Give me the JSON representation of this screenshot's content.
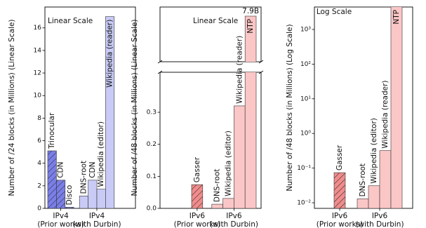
{
  "chart_data": [
    {
      "type": "bar",
      "annotation": "Linear Scale",
      "ylabel": "Number of /24 blocks (in Millions) (Linear Scale)",
      "ylim": [
        0,
        17.85
      ],
      "yticks": [
        0,
        2,
        4,
        6,
        8,
        10,
        12,
        14,
        16
      ],
      "groups": [
        {
          "name": "IPv4",
          "note": "(Prior works)",
          "color": "#7a7ee6",
          "hatch": true,
          "categories": [
            "Trinocular",
            "CDN",
            "Disco"
          ],
          "values": [
            5.1,
            2.5,
            0.1
          ]
        },
        {
          "name": "IPv4",
          "note": "(with Durbin)",
          "color": "#c9cbf6",
          "hatch": false,
          "categories": [
            "DNS-root",
            "CDN",
            "Wikipedia (editor)",
            "Wikipedia (reader)"
          ],
          "values": [
            1.1,
            2.5,
            1.7,
            17.0
          ]
        }
      ]
    },
    {
      "type": "bar",
      "annotation": "Linear Scale",
      "ylabel": "Number of /48 blocks (in Millions) (Linear Scale)",
      "ylim": [
        0,
        0.425
      ],
      "upper_ylim": [
        7400,
        8000
      ],
      "yticks": [
        {
          "value": 0,
          "label": "0.0"
        },
        0.1,
        0.2,
        0.3
      ],
      "groups": [
        {
          "name": "IPv6",
          "note": "(Prior works)",
          "color": "#f08c8c",
          "hatch": true,
          "categories": [
            "Gasser"
          ],
          "values": [
            0.074
          ]
        },
        {
          "name": "IPv6",
          "note": "(with Durbin)",
          "color": "#fbc6c6",
          "hatch": false,
          "categories": [
            "DNS-root",
            "Wikipedia (editor)",
            "Wikipedia (reader)",
            "NTP"
          ],
          "values": [
            0.013,
            0.031,
            0.32,
            7900
          ],
          "value_labels": [
            null,
            null,
            null,
            "7.9B"
          ]
        }
      ]
    },
    {
      "type": "bar",
      "annotation": "Log Scale",
      "ylabel": "Number of /48 blocks (in Millions) (Log Scale)",
      "scale": "log",
      "ylim": [
        0.0069,
        4440
      ],
      "yticks": [
        {
          "value": 0.01,
          "label": "10⁻²"
        },
        {
          "value": 0.1,
          "label": "10⁻¹"
        },
        {
          "value": 1,
          "label": "10⁰"
        },
        {
          "value": 10,
          "label": "10¹"
        },
        {
          "value": 100,
          "label": "10²"
        },
        {
          "value": 1000,
          "label": "10³"
        }
      ],
      "groups": [
        {
          "name": "IPv6",
          "note": "(Prior works)",
          "color": "#f08c8c",
          "hatch": true,
          "categories": [
            "Gasser"
          ],
          "values": [
            0.074
          ]
        },
        {
          "name": "IPv6",
          "note": "(with Durbin)",
          "color": "#fbc6c6",
          "hatch": false,
          "categories": [
            "DNS-root",
            "Wikipedia (editor)",
            "Wikipedia (reader)",
            "NTP"
          ],
          "values": [
            0.013,
            0.031,
            0.32,
            7900
          ]
        }
      ]
    }
  ]
}
